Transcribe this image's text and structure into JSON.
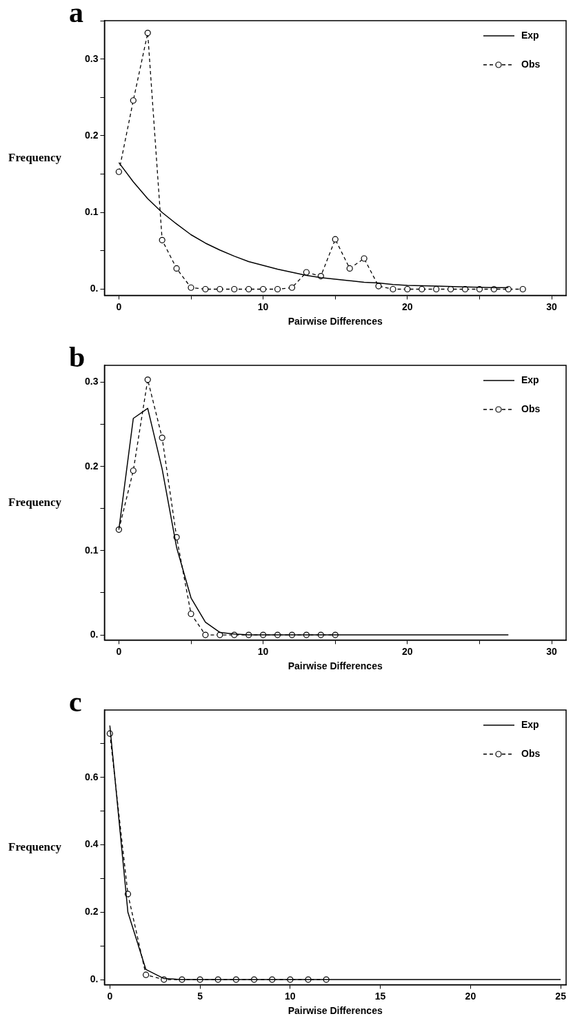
{
  "chart_data": [
    {
      "type": "line",
      "title": "a",
      "xlabel": "Pairwise Differences",
      "ylabel": "Frequency",
      "legend": "top right",
      "grid": false,
      "xlim": [
        -1,
        31
      ],
      "xticks": [
        0,
        {
          "value": 5,
          "label": null
        },
        10,
        {
          "value": 15,
          "label": null
        },
        20,
        {
          "value": 25,
          "label": null
        },
        30
      ],
      "ylim": [
        -0.008,
        0.35
      ],
      "yticks": [
        {
          "value": 0,
          "label": "0."
        },
        {
          "value": 0.05,
          "label": null
        },
        0.1,
        {
          "value": 0.15,
          "label": null
        },
        0.2,
        {
          "value": 0.25,
          "label": null
        },
        0.3,
        {
          "value": 0.35,
          "label": null
        }
      ],
      "series": [
        {
          "name": "Exp",
          "color": "#000000",
          "marker": "none",
          "line_style": "solid",
          "x": [
            0,
            1,
            2,
            3,
            4,
            5,
            6,
            7,
            8,
            9,
            10,
            11,
            12,
            13,
            14,
            15,
            16,
            17,
            18,
            19,
            20,
            22,
            24,
            26,
            27
          ],
          "values": [
            0.165,
            0.14,
            0.118,
            0.1,
            0.085,
            0.071,
            0.06,
            0.051,
            0.043,
            0.036,
            0.031,
            0.026,
            0.022,
            0.018,
            0.015,
            0.013,
            0.011,
            0.009,
            0.008,
            0.006,
            0.005,
            0.004,
            0.003,
            0.002,
            0.002
          ]
        },
        {
          "name": "Obs",
          "color": "#000000",
          "marker": "circle",
          "line_style": "dashed",
          "x": [
            0,
            1,
            2,
            3,
            4,
            5,
            6,
            7,
            8,
            9,
            10,
            11,
            12,
            13,
            14,
            15,
            16,
            17,
            18,
            19,
            20,
            21,
            22,
            23,
            24,
            25,
            26,
            27,
            28
          ],
          "values": [
            0.153,
            0.246,
            0.334,
            0.064,
            0.027,
            0.002,
            0,
            0,
            0,
            0,
            0,
            0,
            0.002,
            0.022,
            0.017,
            0.065,
            0.027,
            0.04,
            0.004,
            0,
            0,
            0,
            0,
            0,
            0,
            0,
            0,
            0,
            0
          ]
        }
      ]
    },
    {
      "type": "line",
      "title": "b",
      "xlabel": "Pairwise Differences",
      "ylabel": "Frequency",
      "legend": "top right",
      "grid": false,
      "xlim": [
        -1,
        31
      ],
      "xticks": [
        0,
        {
          "value": 5,
          "label": null
        },
        10,
        {
          "value": 15,
          "label": null
        },
        20,
        {
          "value": 25,
          "label": null
        },
        30
      ],
      "ylim": [
        -0.006,
        0.32
      ],
      "yticks": [
        {
          "value": 0,
          "label": "0."
        },
        {
          "value": 0.05,
          "label": null
        },
        0.1,
        {
          "value": 0.15,
          "label": null
        },
        0.2,
        {
          "value": 0.25,
          "label": null
        },
        0.3
      ],
      "series": [
        {
          "name": "Exp",
          "color": "#000000",
          "marker": "none",
          "line_style": "solid",
          "x": [
            0,
            1,
            2,
            3,
            4,
            5,
            6,
            7,
            8,
            9,
            10,
            12,
            15,
            20,
            27
          ],
          "values": [
            0.125,
            0.257,
            0.269,
            0.197,
            0.104,
            0.044,
            0.015,
            0.003,
            0.001,
            0,
            0,
            0,
            0,
            0,
            0
          ]
        },
        {
          "name": "Obs",
          "color": "#000000",
          "marker": "circle",
          "line_style": "dashed",
          "x": [
            0,
            1,
            2,
            3,
            4,
            5,
            6,
            7,
            8,
            9,
            10,
            11,
            12,
            13,
            14,
            15
          ],
          "values": [
            0.125,
            0.195,
            0.303,
            0.234,
            0.116,
            0.025,
            0,
            0,
            0,
            0,
            0,
            0,
            0,
            0,
            0,
            0
          ]
        }
      ]
    },
    {
      "type": "line",
      "title": "c",
      "xlabel": "Pairwise Differences",
      "ylabel": "Frequency",
      "legend": "top right",
      "grid": false,
      "xlim": [
        -0.3,
        25.3
      ],
      "xticks": [
        0,
        5,
        10,
        15,
        20,
        25
      ],
      "ylim": [
        -0.015,
        0.8
      ],
      "yticks": [
        {
          "value": 0,
          "label": "0."
        },
        {
          "value": 0.1,
          "label": null
        },
        0.2,
        {
          "value": 0.3,
          "label": null
        },
        0.4,
        {
          "value": 0.5,
          "label": null
        },
        0.6,
        {
          "value": 0.7,
          "label": null
        }
      ],
      "series": [
        {
          "name": "Exp",
          "color": "#000000",
          "marker": "none",
          "line_style": "solid",
          "x": [
            0,
            1,
            2,
            3,
            4,
            5,
            10,
            15,
            20,
            25
          ],
          "values": [
            0.754,
            0.2,
            0.03,
            0.003,
            0,
            0,
            0,
            0,
            0,
            0
          ]
        },
        {
          "name": "Obs",
          "color": "#000000",
          "marker": "circle",
          "line_style": "dashed",
          "x": [
            0,
            1,
            2,
            3,
            4,
            5,
            6,
            7,
            8,
            9,
            10,
            11,
            12
          ],
          "values": [
            0.73,
            0.254,
            0.014,
            0,
            0,
            0,
            0,
            0,
            0,
            0,
            0,
            0,
            0
          ]
        }
      ]
    }
  ]
}
